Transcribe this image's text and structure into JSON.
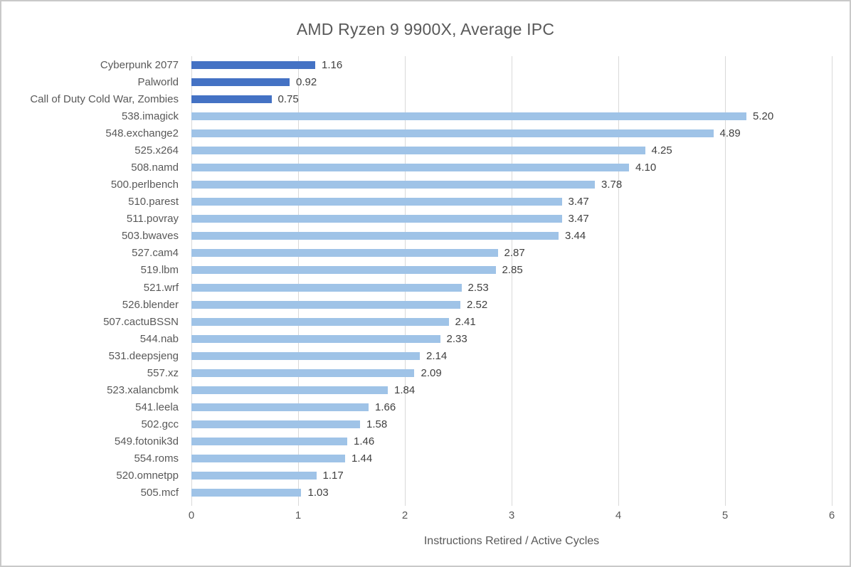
{
  "chart_data": {
    "type": "bar",
    "orientation": "horizontal",
    "title": "AMD Ryzen 9 9900X, Average IPC",
    "xlabel": "Instructions Retired / Active Cycles",
    "xlim": [
      0,
      6
    ],
    "xticks": [
      0,
      1,
      2,
      3,
      4,
      5,
      6
    ],
    "grid": true,
    "legend": "none",
    "colors": {
      "game_bar": "#4472c4",
      "spec_bar": "#9fc3e7",
      "gridline": "#d9d9d9",
      "title_text": "#595959",
      "value_text": "#404040"
    },
    "game_bar_count": 3,
    "categories": [
      "Cyberpunk 2077",
      "Palworld",
      "Call of Duty Cold War, Zombies",
      "538.imagick",
      "548.exchange2",
      "525.x264",
      "508.namd",
      "500.perlbench",
      "510.parest",
      "511.povray",
      "503.bwaves",
      "527.cam4",
      "519.lbm",
      "521.wrf",
      "526.blender",
      "507.cactuBSSN",
      "544.nab",
      "531.deepsjeng",
      "557.xz",
      "523.xalancbmk",
      "541.leela",
      "502.gcc",
      "549.fotonik3d",
      "554.roms",
      "520.omnetpp",
      "505.mcf"
    ],
    "values": [
      1.16,
      0.92,
      0.75,
      5.2,
      4.89,
      4.25,
      4.1,
      3.78,
      3.47,
      3.47,
      3.44,
      2.87,
      2.85,
      2.53,
      2.52,
      2.41,
      2.33,
      2.14,
      2.09,
      1.84,
      1.66,
      1.58,
      1.46,
      1.44,
      1.17,
      1.03
    ],
    "value_labels": [
      "1.16",
      "0.92",
      "0.75",
      "5.20",
      "4.89",
      "4.25",
      "4.10",
      "3.78",
      "3.47",
      "3.47",
      "3.44",
      "2.87",
      "2.85",
      "2.53",
      "2.52",
      "2.41",
      "2.33",
      "2.14",
      "2.09",
      "1.84",
      "1.66",
      "1.58",
      "1.46",
      "1.44",
      "1.17",
      "1.03"
    ]
  }
}
